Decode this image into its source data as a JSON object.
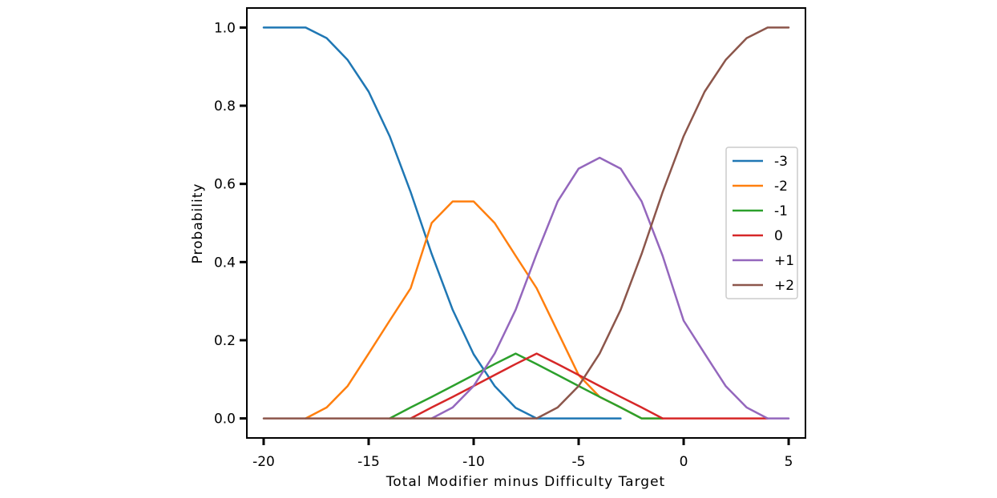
{
  "chart_data": {
    "type": "line",
    "title": "",
    "xlabel": "Total Modifier minus Difficulty Target",
    "ylabel": "Probability",
    "xlim": [
      -20.8,
      5.8
    ],
    "ylim": [
      -0.05,
      1.05
    ],
    "xticks": [
      -20,
      -15,
      -10,
      -5,
      0,
      5
    ],
    "xtick_labels": [
      "-20",
      "-15",
      "-10",
      "-5",
      "0",
      "5"
    ],
    "yticks": [
      0.0,
      0.2,
      0.4,
      0.6,
      0.8,
      1.0
    ],
    "ytick_labels": [
      "0.0",
      "0.2",
      "0.4",
      "0.6",
      "0.8",
      "1.0"
    ],
    "grid": false,
    "legend_position": "center-right",
    "x": [
      -20,
      -19,
      -18,
      -17,
      -16,
      -15,
      -14,
      -13,
      -12,
      -11,
      -10,
      -9,
      -8,
      -7,
      -6,
      -5,
      -4,
      -3,
      -2,
      -1,
      0,
      1,
      2,
      3,
      4,
      5
    ],
    "series": [
      {
        "name": "-3",
        "color": "#1f77b4",
        "values": [
          1.0,
          1.0,
          1.0,
          0.973,
          0.917,
          0.836,
          0.722,
          0.579,
          0.421,
          0.278,
          0.164,
          0.083,
          0.027,
          0.0,
          0.0,
          0.0,
          0.0,
          0.0,
          null,
          null,
          null,
          null,
          null,
          null,
          null,
          null
        ]
      },
      {
        "name": "-2",
        "color": "#ff7f0e",
        "values": [
          null,
          null,
          0.0,
          0.028,
          0.083,
          0.166,
          0.25,
          0.333,
          0.5,
          0.555,
          0.555,
          0.5,
          0.416,
          0.333,
          0.222,
          0.111,
          0.055,
          0.028,
          0.0,
          0.0,
          null,
          null,
          null,
          null,
          null,
          null
        ]
      },
      {
        "name": "-1",
        "color": "#2ca02c",
        "values": [
          null,
          null,
          null,
          null,
          null,
          null,
          0.0,
          0.028,
          0.055,
          0.083,
          0.111,
          0.139,
          0.166,
          0.139,
          0.111,
          0.083,
          0.055,
          0.028,
          0.0,
          0.0,
          null,
          null,
          null,
          null,
          null,
          null
        ]
      },
      {
        "name": "0",
        "color": "#d62728",
        "values": [
          null,
          null,
          null,
          null,
          null,
          null,
          null,
          0.0,
          0.028,
          0.055,
          0.083,
          0.111,
          0.139,
          0.166,
          0.139,
          0.111,
          0.083,
          0.055,
          0.028,
          0.0,
          0.0,
          0.0,
          0.0,
          0.0,
          0.0,
          null
        ]
      },
      {
        "name": "+1",
        "color": "#9467bd",
        "values": [
          null,
          null,
          null,
          null,
          null,
          null,
          null,
          null,
          0.0,
          0.028,
          0.083,
          0.166,
          0.278,
          0.421,
          0.555,
          0.639,
          0.667,
          0.639,
          0.555,
          0.416,
          0.25,
          0.166,
          0.083,
          0.028,
          0.0,
          0.0
        ]
      },
      {
        "name": "+2",
        "color": "#8c564b",
        "values": [
          0.0,
          0.0,
          0.0,
          0.0,
          0.0,
          0.0,
          0.0,
          0.0,
          0.0,
          0.0,
          0.0,
          0.0,
          0.0,
          0.0,
          0.028,
          0.083,
          0.166,
          0.278,
          0.421,
          0.579,
          0.722,
          0.836,
          0.917,
          0.973,
          1.0,
          1.0
        ]
      }
    ]
  }
}
